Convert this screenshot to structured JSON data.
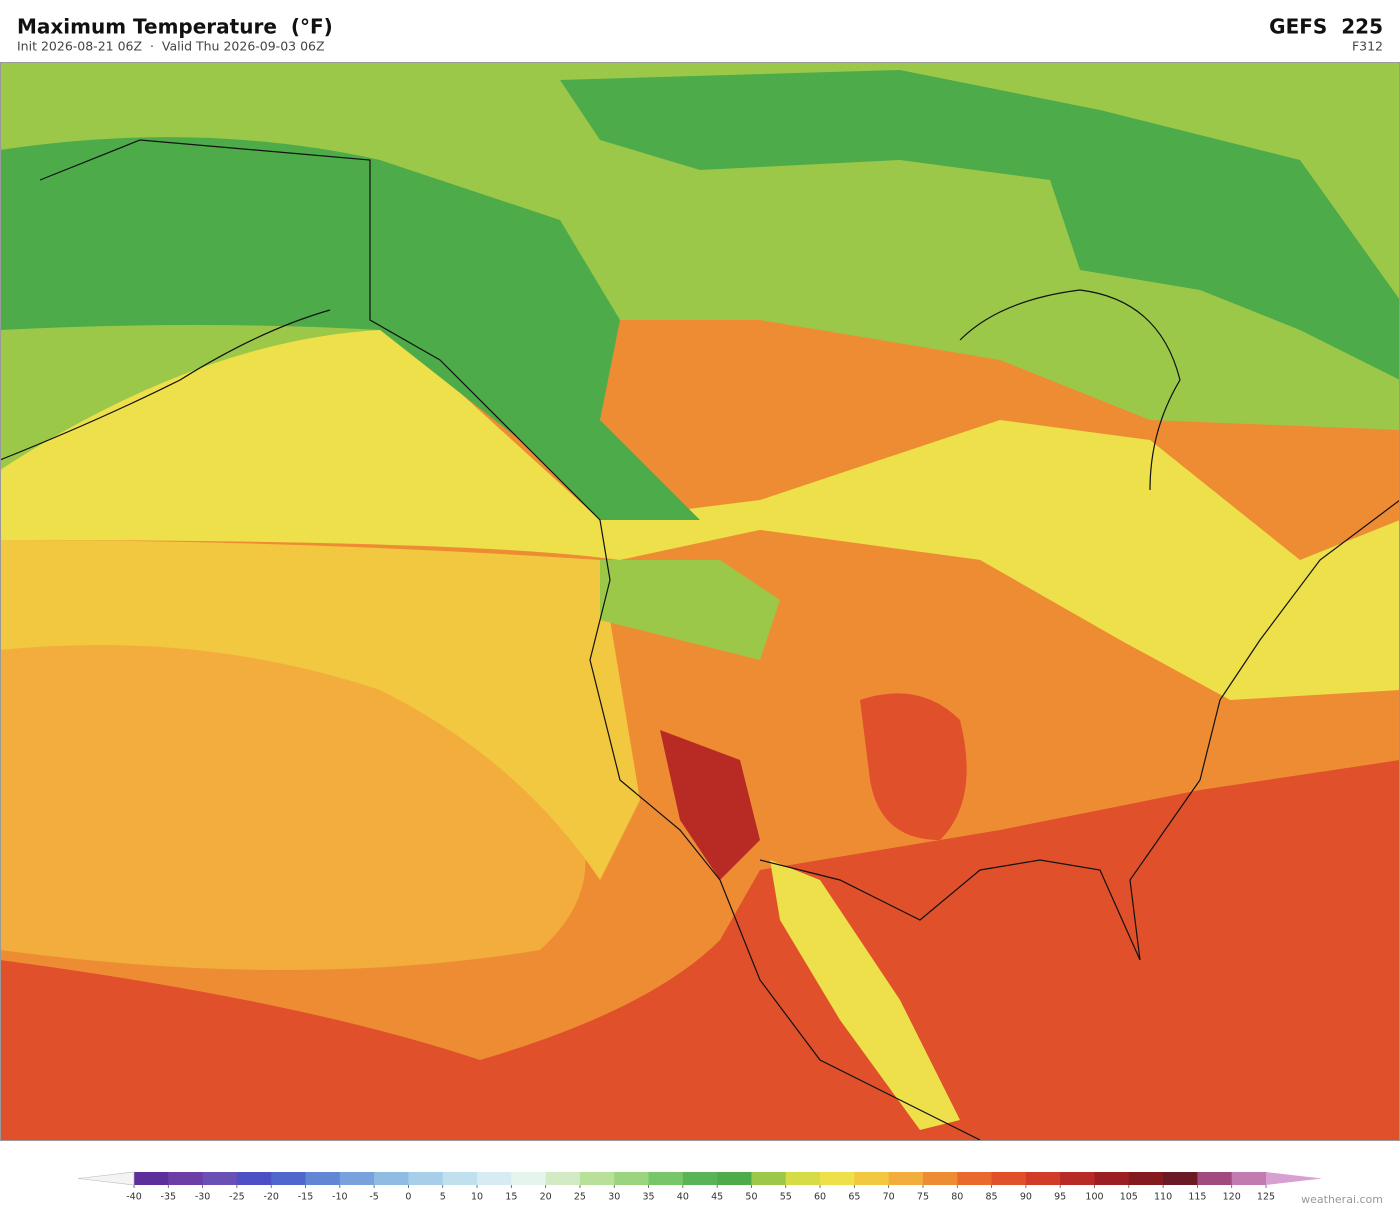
{
  "header": {
    "title": "Maximum Temperature  (°F)",
    "subtitle": "Init 2026-08-21 06Z  ·  Valid Thu 2026-09-03 06Z",
    "model": "GEFS  225",
    "forecast_hour": "F312"
  },
  "colorbar": {
    "ticks": [
      -40,
      -35,
      -30,
      -25,
      -20,
      -15,
      -10,
      -5,
      0,
      5,
      10,
      15,
      20,
      25,
      30,
      35,
      40,
      45,
      50,
      55,
      60,
      65,
      70,
      75,
      80,
      85,
      90,
      95,
      100,
      105,
      110,
      115,
      120,
      125
    ],
    "colors": [
      "#5e2f9a",
      "#6d3fa6",
      "#6a4fb5",
      "#4e4fc4",
      "#4f66cc",
      "#6286d4",
      "#78a2dc",
      "#90bce4",
      "#a8cfea",
      "#c0e0ee",
      "#d6ecf2",
      "#e6f4ee",
      "#d2ebc4",
      "#b8e09a",
      "#9ad47e",
      "#78c66a",
      "#58b456",
      "#4eab4a",
      "#9cc84a",
      "#d6dc46",
      "#eee04a",
      "#f2c840",
      "#f2ad3c",
      "#ee8c34",
      "#e8682e",
      "#e0502a",
      "#d03c28",
      "#b82a24",
      "#9a1e22",
      "#821a20",
      "#6a1a24",
      "#a04a80",
      "#c27ab0"
    ],
    "under_color": "#f4f4f4",
    "over_color": "#d8a0d0"
  },
  "footer": {
    "credit": "weatherai.com"
  }
}
